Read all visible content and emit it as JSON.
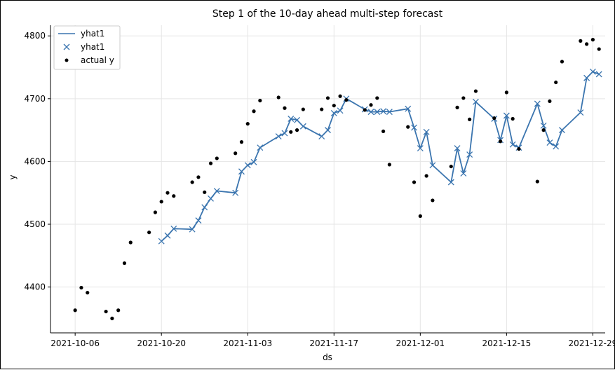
{
  "chart_data": {
    "type": "line",
    "title": "Step 1 of the 10-day ahead multi-step forecast",
    "xlabel": "ds",
    "ylabel": "y",
    "xlim": [
      "2021-10-02",
      "2021-12-31"
    ],
    "ylim": [
      4327,
      4817
    ],
    "grid": true,
    "legend_position": "top-left",
    "colors": {
      "line": "#3b75af",
      "marker": "#3b75af",
      "actual": "#000000",
      "grid": "#e5e5e5"
    },
    "x_ticks": [
      "2021-10-06",
      "2021-10-20",
      "2021-11-03",
      "2021-11-17",
      "2021-12-01",
      "2021-12-15",
      "2021-12-29"
    ],
    "y_ticks": [
      4400,
      4500,
      4600,
      4700,
      4800
    ],
    "legend": [
      {
        "label": "yhat1",
        "kind": "line"
      },
      {
        "label": "yhat1",
        "kind": "x-marker"
      },
      {
        "label": "actual y",
        "kind": "dot"
      }
    ],
    "series": [
      {
        "name": "yhat1",
        "x": [
          "2021-10-20",
          "2021-10-21",
          "2021-10-22",
          "2021-10-25",
          "2021-10-26",
          "2021-10-27",
          "2021-10-28",
          "2021-10-29",
          "2021-11-01",
          "2021-11-02",
          "2021-11-03",
          "2021-11-04",
          "2021-11-05",
          "2021-11-08",
          "2021-11-09",
          "2021-11-10",
          "2021-11-11",
          "2021-11-12",
          "2021-11-15",
          "2021-11-16",
          "2021-11-17",
          "2021-11-18",
          "2021-11-19",
          "2021-11-22",
          "2021-11-23",
          "2021-11-24",
          "2021-11-25",
          "2021-11-26",
          "2021-11-29",
          "2021-11-30",
          "2021-12-01",
          "2021-12-02",
          "2021-12-03",
          "2021-12-06",
          "2021-12-07",
          "2021-12-08",
          "2021-12-09",
          "2021-12-10",
          "2021-12-13",
          "2021-12-14",
          "2021-12-15",
          "2021-12-16",
          "2021-12-17",
          "2021-12-20",
          "2021-12-21",
          "2021-12-22",
          "2021-12-23",
          "2021-12-24",
          "2021-12-27",
          "2021-12-28",
          "2021-12-29",
          "2021-12-30"
        ],
        "y": [
          4473,
          4482,
          4493,
          4492,
          4506,
          4527,
          4541,
          4553,
          4550,
          4584,
          4594,
          4599,
          4622,
          4640,
          4645,
          4668,
          4666,
          4656,
          4640,
          4650,
          4677,
          4681,
          4700,
          4683,
          4679,
          4679,
          4680,
          4679,
          4684,
          4654,
          4621,
          4647,
          4594,
          4567,
          4621,
          4581,
          4611,
          4695,
          4668,
          4634,
          4673,
          4627,
          4622,
          4692,
          4657,
          4630,
          4624,
          4650,
          4678,
          4733,
          4743,
          4739
        ]
      },
      {
        "name": "actual y",
        "x": [
          "2021-10-06",
          "2021-10-07",
          "2021-10-08",
          "2021-10-11",
          "2021-10-12",
          "2021-10-13",
          "2021-10-14",
          "2021-10-15",
          "2021-10-18",
          "2021-10-19",
          "2021-10-20",
          "2021-10-21",
          "2021-10-22",
          "2021-10-25",
          "2021-10-26",
          "2021-10-27",
          "2021-10-28",
          "2021-10-29",
          "2021-11-01",
          "2021-11-02",
          "2021-11-03",
          "2021-11-04",
          "2021-11-05",
          "2021-11-08",
          "2021-11-09",
          "2021-11-10",
          "2021-11-11",
          "2021-11-12",
          "2021-11-15",
          "2021-11-16",
          "2021-11-17",
          "2021-11-18",
          "2021-11-19",
          "2021-11-22",
          "2021-11-23",
          "2021-11-24",
          "2021-11-25",
          "2021-11-26",
          "2021-11-29",
          "2021-11-30",
          "2021-12-01",
          "2021-12-02",
          "2021-12-03",
          "2021-12-06",
          "2021-12-07",
          "2021-12-08",
          "2021-12-09",
          "2021-12-10",
          "2021-12-13",
          "2021-12-14",
          "2021-12-15",
          "2021-12-16",
          "2021-12-17",
          "2021-12-20",
          "2021-12-21",
          "2021-12-22",
          "2021-12-23",
          "2021-12-24",
          "2021-12-27",
          "2021-12-28",
          "2021-12-29",
          "2021-12-30"
        ],
        "y": [
          4363,
          4399,
          4391,
          4361,
          4350,
          4363,
          4438,
          4471,
          4487,
          4519,
          4536,
          4550,
          4545,
          4567,
          4575,
          4551,
          4597,
          4605,
          4613,
          4631,
          4660,
          4680,
          4697,
          4702,
          4685,
          4647,
          4650,
          4683,
          4683,
          4701,
          4689,
          4704,
          4698,
          4682,
          4690,
          4701,
          4648,
          4595,
          4655,
          4567,
          4513,
          4577,
          4538,
          4592,
          4686,
          4701,
          4667,
          4712,
          4669,
          4632,
          4710,
          4668,
          4620,
          4568,
          4650,
          4696,
          4726,
          4759,
          4792,
          4787,
          4794,
          4779
        ]
      }
    ]
  }
}
